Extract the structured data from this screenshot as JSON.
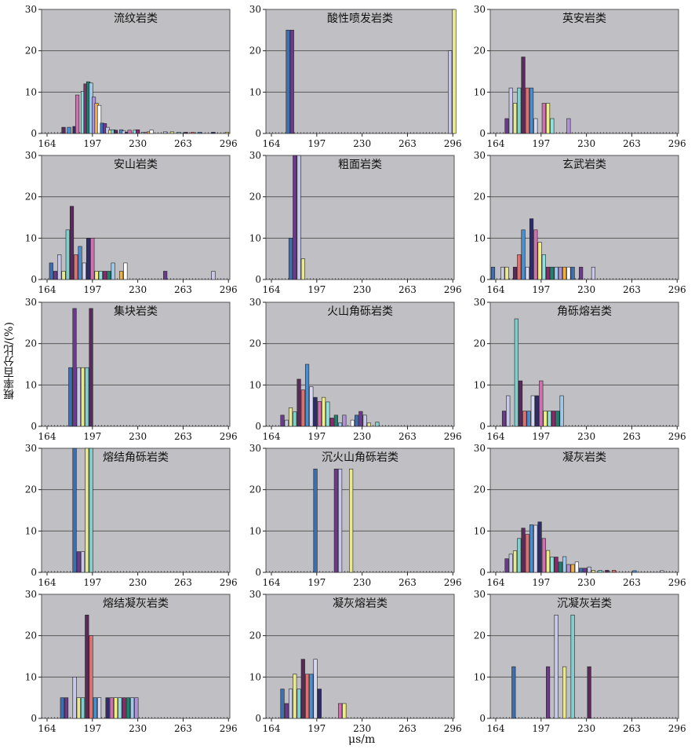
{
  "figure": {
    "ylabel": "概率百分比/(%)",
    "xlabel": "μs/m"
  },
  "colors": [
    "#3d6fb0",
    "#6b3a8c",
    "#c8c8e8",
    "#e8e890",
    "#7fcfcf",
    "#5a2a5a",
    "#e07070",
    "#4a8ed0",
    "#d8d8f0",
    "#2d2d6d",
    "#d070b0",
    "#f0f080",
    "#90e0e0",
    "#8a2a6a",
    "#208070",
    "#a0c8e8",
    "#b090d8",
    "#f0b040",
    "#ffffff"
  ],
  "chart_data": [
    {
      "type": "bar",
      "title": "流纹岩类",
      "ylim": [
        0,
        30
      ],
      "xlim": [
        160,
        297
      ],
      "xticks": [
        164,
        197,
        230,
        263,
        296
      ],
      "yticks": [
        0,
        10,
        20,
        30
      ],
      "x": [
        166,
        168,
        170,
        172,
        174,
        176,
        178,
        180,
        182,
        184,
        186,
        188,
        190,
        192,
        194,
        196,
        198,
        200,
        202,
        204,
        206,
        208,
        210,
        212,
        214,
        216,
        218,
        220,
        222,
        224,
        226,
        228,
        230,
        232,
        234,
        236,
        238,
        240,
        242,
        244,
        250,
        255,
        260,
        265,
        270,
        275,
        280,
        285,
        290,
        295
      ],
      "values": [
        0,
        0,
        0,
        0,
        0,
        1.5,
        0,
        1.5,
        0,
        1.7,
        9.3,
        0,
        10.2,
        12,
        12.5,
        12.2,
        8.8,
        7.3,
        6.8,
        2.5,
        2.4,
        1.5,
        0.8,
        0.9,
        0.8,
        0,
        0.9,
        0.6,
        0.3,
        0.8,
        0,
        0.8,
        0.9,
        0,
        0.3,
        0.3,
        0.4,
        0.8,
        0,
        0,
        0.4,
        0.4,
        0.3,
        0.3,
        0.3,
        0.3,
        0,
        0.3,
        0,
        0.3
      ]
    },
    {
      "type": "bar",
      "title": "酸性喷发岩类",
      "ylim": [
        0,
        30
      ],
      "xlim": [
        160,
        297
      ],
      "xticks": [
        164,
        197,
        230,
        263,
        296
      ],
      "yticks": [
        0,
        10,
        20,
        30
      ],
      "x": [
        176,
        179,
        294,
        297
      ],
      "values": [
        25,
        25,
        20,
        30
      ]
    },
    {
      "type": "bar",
      "title": "英安岩类",
      "ylim": [
        0,
        30
      ],
      "xlim": [
        160,
        297
      ],
      "xticks": [
        164,
        197,
        230,
        263,
        296
      ],
      "yticks": [
        0,
        10,
        20,
        30
      ],
      "x": [
        169,
        172,
        175,
        178,
        181,
        184,
        187,
        190,
        193,
        196,
        199,
        202,
        205,
        208,
        211,
        214,
        217,
        220
      ],
      "values": [
        0,
        3.6,
        11,
        7.3,
        11,
        18.5,
        11,
        11,
        3.6,
        0,
        7.3,
        7.3,
        3.6,
        0,
        0,
        0,
        3.6,
        0
      ]
    },
    {
      "type": "bar",
      "title": "安山岩类",
      "ylim": [
        0,
        30
      ],
      "xlim": [
        160,
        297
      ],
      "xticks": [
        164,
        197,
        230,
        263,
        296
      ],
      "yticks": [
        0,
        10,
        20,
        30
      ],
      "x": [
        167,
        170,
        173,
        176,
        179,
        182,
        185,
        188,
        191,
        194,
        197,
        200,
        203,
        206,
        209,
        212,
        215,
        218,
        221,
        224,
        250,
        285
      ],
      "values": [
        4,
        2,
        6,
        2,
        12,
        17.7,
        6,
        8,
        4,
        10,
        10,
        2,
        2,
        2,
        2,
        4,
        0,
        2,
        4,
        0,
        2,
        2
      ]
    },
    {
      "type": "bar",
      "title": "粗面岩类",
      "ylim": [
        0,
        30
      ],
      "xlim": [
        160,
        297
      ],
      "xticks": [
        164,
        197,
        230,
        263,
        296
      ],
      "yticks": [
        0,
        10,
        20,
        30
      ],
      "x": [
        178,
        181,
        184,
        187
      ],
      "values": [
        10,
        30,
        30,
        5
      ]
    },
    {
      "type": "bar",
      "title": "玄武岩类",
      "ylim": [
        0,
        30
      ],
      "xlim": [
        160,
        297
      ],
      "xticks": [
        164,
        197,
        230,
        263,
        296
      ],
      "yticks": [
        0,
        10,
        20,
        30
      ],
      "x": [
        162,
        166,
        169,
        172,
        175,
        178,
        181,
        184,
        187,
        190,
        193,
        196,
        199,
        202,
        205,
        208,
        211,
        214,
        217,
        220,
        226,
        235
      ],
      "values": [
        3,
        0,
        3,
        3,
        0,
        3,
        6,
        12,
        3,
        14.7,
        12,
        9,
        6,
        3,
        3,
        3,
        3,
        3,
        3,
        3,
        3,
        3
      ]
    },
    {
      "type": "bar",
      "title": "集块岩类",
      "ylim": [
        0,
        30
      ],
      "xlim": [
        160,
        297
      ],
      "xticks": [
        164,
        197,
        230,
        263,
        296
      ],
      "yticks": [
        0,
        10,
        20,
        30
      ],
      "x": [
        181,
        184,
        187,
        190,
        193,
        196
      ],
      "values": [
        14.2,
        28.5,
        14.2,
        14.2,
        14.2,
        28.5
      ]
    },
    {
      "type": "bar",
      "title": "火山角砾岩类",
      "ylim": [
        0,
        30
      ],
      "xlim": [
        160,
        297
      ],
      "xticks": [
        164,
        197,
        230,
        263,
        296
      ],
      "yticks": [
        0,
        10,
        20,
        30
      ],
      "x": [
        169,
        172,
        175,
        178,
        181,
        184,
        187,
        190,
        193,
        196,
        199,
        202,
        205,
        208,
        211,
        214,
        217,
        220,
        223,
        226,
        229,
        232,
        235,
        241,
        247
      ],
      "values": [
        0,
        2.7,
        1.5,
        4.5,
        3.5,
        11.4,
        8.8,
        15,
        9.6,
        7,
        6,
        7,
        5.9,
        2,
        2.7,
        0.8,
        2.7,
        0,
        1.5,
        2.7,
        3.6,
        2.7,
        0.8,
        1,
        0
      ]
    },
    {
      "type": "bar",
      "title": "角砾熔岩类",
      "ylim": [
        0,
        30
      ],
      "xlim": [
        160,
        297
      ],
      "xticks": [
        164,
        197,
        230,
        263,
        296
      ],
      "yticks": [
        0,
        10,
        20,
        30
      ],
      "x": [
        167,
        170,
        173,
        176,
        179,
        182,
        185,
        188,
        191,
        194,
        197,
        200,
        203,
        206,
        209,
        212
      ],
      "values": [
        0,
        3.7,
        7.4,
        0,
        26,
        11,
        3.7,
        3.7,
        7.4,
        7.4,
        11,
        3.7,
        3.7,
        3.7,
        3.7,
        7.4
      ]
    },
    {
      "type": "bar",
      "title": "熔结角砾岩类",
      "ylim": [
        0,
        30
      ],
      "xlim": [
        160,
        297
      ],
      "xticks": [
        164,
        197,
        230,
        263,
        296
      ],
      "yticks": [
        0,
        10,
        20,
        30
      ],
      "x": [
        184,
        187,
        190,
        193,
        196
      ],
      "values": [
        30,
        5,
        5,
        30,
        30
      ]
    },
    {
      "type": "bar",
      "title": "沉火山角砾岩类",
      "ylim": [
        0,
        30
      ],
      "xlim": [
        160,
        297
      ],
      "xticks": [
        164,
        197,
        230,
        263,
        296
      ],
      "yticks": [
        0,
        10,
        20,
        30
      ],
      "x": [
        196,
        211,
        214,
        222
      ],
      "values": [
        25,
        25,
        25,
        25
      ]
    },
    {
      "type": "bar",
      "title": "凝灰岩类",
      "ylim": [
        0,
        30
      ],
      "xlim": [
        160,
        297
      ],
      "xticks": [
        164,
        197,
        230,
        263,
        296
      ],
      "yticks": [
        0,
        10,
        20,
        30
      ],
      "x": [
        169,
        172,
        175,
        178,
        181,
        184,
        187,
        190,
        193,
        196,
        199,
        202,
        205,
        208,
        211,
        214,
        217,
        220,
        223,
        226,
        229,
        232,
        235,
        240,
        245,
        250,
        265,
        285
      ],
      "values": [
        0,
        3.3,
        4.4,
        5.2,
        8.2,
        10.7,
        9.2,
        11.5,
        11.4,
        12.2,
        8.2,
        5.3,
        3.7,
        3.7,
        2.5,
        3.8,
        1.9,
        1.9,
        2.5,
        1,
        1,
        1.3,
        0.5,
        0.5,
        0.5,
        0.5,
        0.4,
        0.4
      ]
    },
    {
      "type": "bar",
      "title": "熔结凝灰岩类",
      "ylim": [
        0,
        30
      ],
      "xlim": [
        160,
        297
      ],
      "xticks": [
        164,
        197,
        230,
        263,
        296
      ],
      "yticks": [
        0,
        10,
        20,
        30
      ],
      "x": [
        175,
        178,
        184,
        187,
        190,
        193,
        196,
        199,
        202,
        208,
        211,
        214,
        217,
        220,
        223,
        226,
        229
      ],
      "values": [
        5,
        5,
        10,
        5,
        5,
        25,
        20,
        5,
        5,
        5,
        5,
        5,
        5,
        5,
        5,
        5,
        5
      ]
    },
    {
      "type": "bar",
      "title": "凝灰熔岩类",
      "ylim": [
        0,
        30
      ],
      "xlim": [
        160,
        297
      ],
      "xticks": [
        164,
        197,
        230,
        263,
        296
      ],
      "yticks": [
        0,
        10,
        20,
        30
      ],
      "x": [
        172,
        175,
        178,
        181,
        184,
        187,
        190,
        193,
        196,
        199,
        214,
        217
      ],
      "values": [
        7.1,
        3.6,
        7.1,
        10.7,
        7.1,
        14.3,
        10.7,
        10.7,
        14.3,
        7.1,
        3.6,
        3.6
      ]
    },
    {
      "type": "bar",
      "title": "沉凝灰岩类",
      "ylim": [
        0,
        30
      ],
      "xlim": [
        160,
        297
      ],
      "xticks": [
        164,
        197,
        230,
        263,
        296
      ],
      "yticks": [
        0,
        10,
        20,
        30
      ],
      "x": [
        177,
        202,
        208,
        214,
        220,
        232
      ],
      "values": [
        12.5,
        12.5,
        25,
        12.5,
        25,
        12.5
      ]
    }
  ]
}
